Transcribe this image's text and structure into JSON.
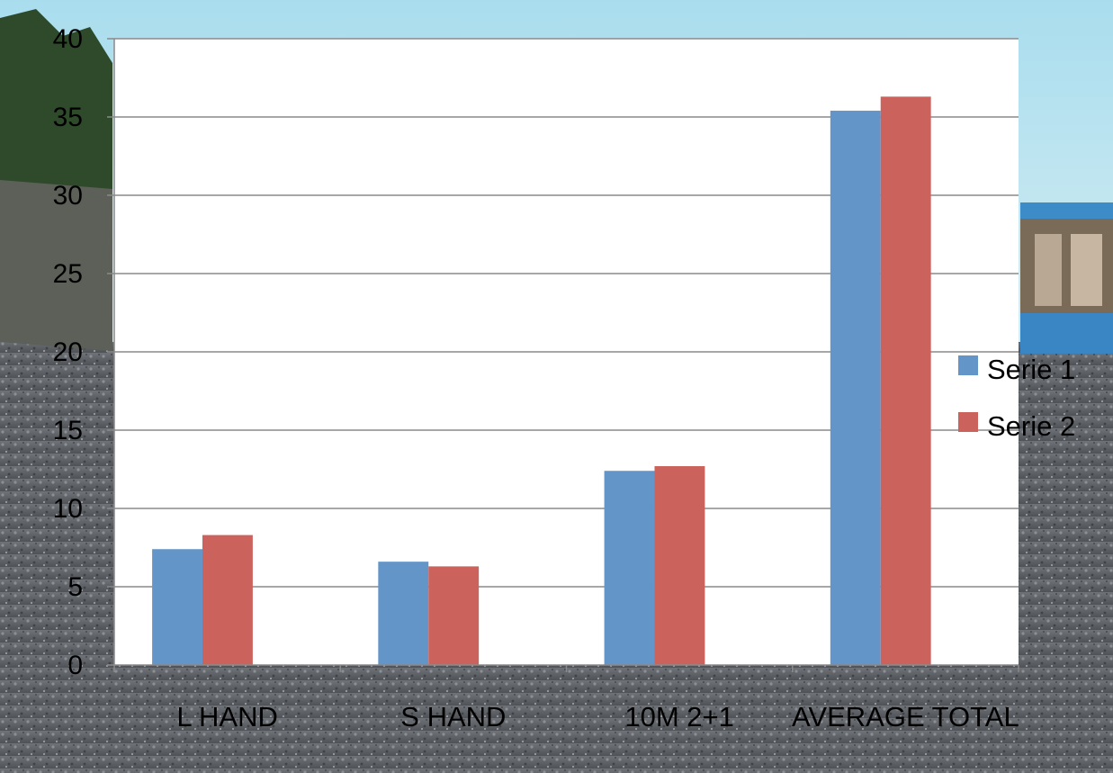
{
  "chart_data": {
    "type": "bar",
    "categories": [
      "L HAND",
      "S HAND",
      "10M 2+1",
      "AVERAGE TOTAL"
    ],
    "series": [
      {
        "name": "Serie 1",
        "color": "#6395c9",
        "values": [
          7.4,
          6.6,
          12.4,
          35.4
        ]
      },
      {
        "name": "Serie 2",
        "color": "#cc625c",
        "values": [
          8.3,
          6.3,
          12.7,
          36.3
        ]
      }
    ],
    "yticks": [
      0,
      5,
      10,
      15,
      20,
      25,
      30,
      35,
      40
    ],
    "ylim": [
      0,
      40
    ],
    "grid": true,
    "legend_position": "right",
    "background": "photo of an outdoor gravel shooting range with trees, sky and a building"
  }
}
